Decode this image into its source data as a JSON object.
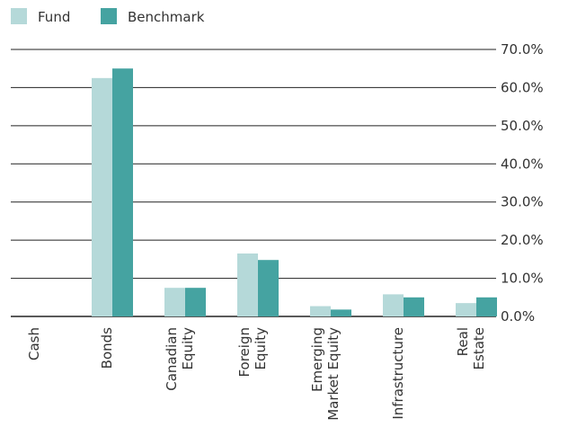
{
  "chart_data": {
    "type": "bar",
    "categories": [
      [
        "Cash"
      ],
      [
        "Bonds"
      ],
      [
        "Canadian",
        "Equity"
      ],
      [
        "Foreign",
        "Equity"
      ],
      [
        "Emerging",
        "Market Equity"
      ],
      [
        "Infrastructure"
      ],
      [
        "Real",
        "Estate"
      ]
    ],
    "series": [
      {
        "name": "Fund",
        "color": "#b5d9d9",
        "values": [
          0,
          62.5,
          7.5,
          16.5,
          2.7,
          5.8,
          3.5
        ]
      },
      {
        "name": "Benchmark",
        "color": "#45a3a1",
        "values": [
          0,
          65.0,
          7.5,
          14.8,
          1.8,
          5.0,
          5.0
        ]
      }
    ],
    "yticks": [
      "0.0%",
      "10.0%",
      "20.0%",
      "30.0%",
      "40.0%",
      "50.0%",
      "60.0%",
      "70.0%"
    ],
    "ylim": [
      0,
      70
    ],
    "grid": true,
    "legend_position": "top-left"
  }
}
